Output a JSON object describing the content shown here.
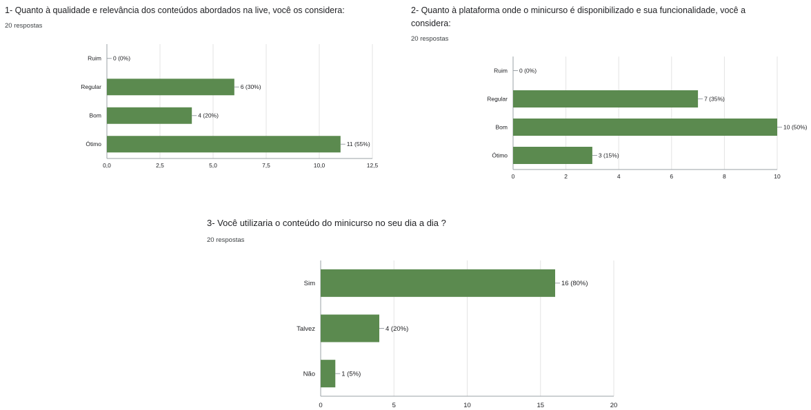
{
  "chart_data": [
    {
      "type": "bar",
      "orientation": "horizontal",
      "title": "1- Quanto à qualidade e relevância dos conteúdos abordados na live, você os considera:",
      "subtitle": "20 respostas",
      "categories": [
        "Ruim",
        "Regular",
        "Bom",
        "Ótimo"
      ],
      "values": [
        0,
        6,
        4,
        11
      ],
      "data_labels": [
        "0 (0%)",
        "6 (30%)",
        "4 (20%)",
        "11 (55%)"
      ],
      "xlim": [
        0,
        12.5
      ],
      "xticks": [
        0,
        2.5,
        5,
        7.5,
        10,
        12.5
      ],
      "xtick_labels": [
        "0,0",
        "2,5",
        "5,0",
        "7,5",
        "10,0",
        "12,5"
      ],
      "bar_color": "#5b8a4f",
      "grid": true
    },
    {
      "type": "bar",
      "orientation": "horizontal",
      "title": "2- Quanto à plataforma onde o minicurso é disponibilizado e sua funcionalidade, você a considera:",
      "subtitle": "20 respostas",
      "categories": [
        "Ruim",
        "Regular",
        "Bom",
        "Ótimo"
      ],
      "values": [
        0,
        7,
        10,
        3
      ],
      "data_labels": [
        "0 (0%)",
        "7 (35%)",
        "10 (50%)",
        "3 (15%)"
      ],
      "xlim": [
        0,
        10
      ],
      "xticks": [
        0,
        2,
        4,
        6,
        8,
        10
      ],
      "xtick_labels": [
        "0",
        "2",
        "4",
        "6",
        "8",
        "10"
      ],
      "bar_color": "#5b8a4f",
      "grid": true
    },
    {
      "type": "bar",
      "orientation": "horizontal",
      "title": "3- Você utilizaria o conteúdo do minicurso no seu dia a dia ?",
      "subtitle": "20 respostas",
      "categories": [
        "Sim",
        "Talvez",
        "Não"
      ],
      "values": [
        16,
        4,
        1
      ],
      "data_labels": [
        "16 (80%)",
        "4 (20%)",
        "1 (5%)"
      ],
      "xlim": [
        0,
        20
      ],
      "xticks": [
        0,
        5,
        10,
        15,
        20
      ],
      "xtick_labels": [
        "0",
        "5",
        "10",
        "15",
        "20"
      ],
      "bar_color": "#5b8a4f",
      "grid": true
    }
  ]
}
